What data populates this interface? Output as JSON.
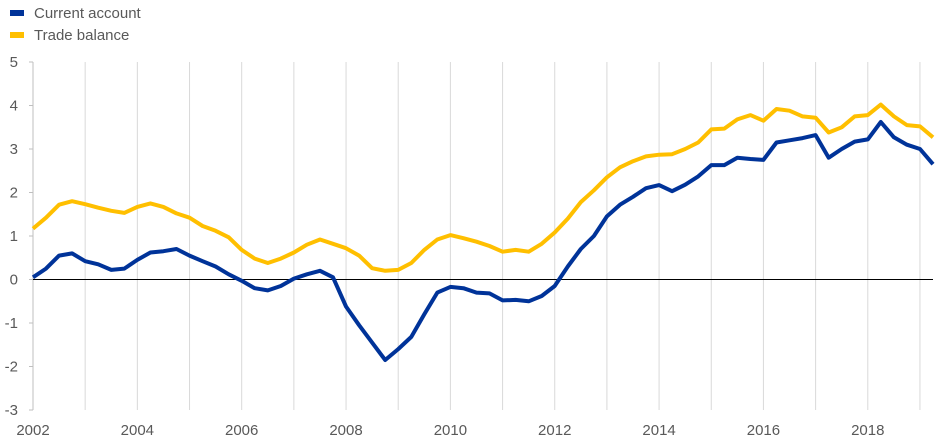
{
  "chart_data": {
    "type": "line",
    "title": "",
    "xlabel": "",
    "ylabel": "",
    "xlim": [
      2002,
      2019.25
    ],
    "ylim": [
      -3,
      5
    ],
    "x_ticks": [
      "2002",
      "2004",
      "2006",
      "2008",
      "2010",
      "2012",
      "2014",
      "2016",
      "2018"
    ],
    "y_ticks": [
      "5",
      "4",
      "3",
      "2",
      "1",
      "0",
      "-1",
      "-2",
      "-3"
    ],
    "grid": "vertical at each year",
    "legend_position": "top-left",
    "x": [
      2002,
      2002.25,
      2002.5,
      2002.75,
      2003,
      2003.25,
      2003.5,
      2003.75,
      2004,
      2004.25,
      2004.5,
      2004.75,
      2005,
      2005.25,
      2005.5,
      2005.75,
      2006,
      2006.25,
      2006.5,
      2006.75,
      2007,
      2007.25,
      2007.5,
      2007.75,
      2008,
      2008.25,
      2008.5,
      2008.75,
      2009,
      2009.25,
      2009.5,
      2009.75,
      2010,
      2010.25,
      2010.5,
      2010.75,
      2011,
      2011.25,
      2011.5,
      2011.75,
      2012,
      2012.25,
      2012.5,
      2012.75,
      2013,
      2013.25,
      2013.5,
      2013.75,
      2014,
      2014.25,
      2014.5,
      2014.75,
      2015,
      2015.25,
      2015.5,
      2015.75,
      2016,
      2016.25,
      2016.5,
      2016.75,
      2017,
      2017.25,
      2017.5,
      2017.75,
      2018,
      2018.25,
      2018.5,
      2018.75,
      2019,
      2019.25
    ],
    "series": [
      {
        "name": "Current account",
        "color": "#003399",
        "values": [
          0.05,
          0.25,
          0.55,
          0.6,
          0.42,
          0.35,
          0.22,
          0.25,
          0.45,
          0.62,
          0.65,
          0.7,
          0.55,
          0.42,
          0.3,
          0.12,
          -0.03,
          -0.2,
          -0.25,
          -0.15,
          0.02,
          0.12,
          0.2,
          0.05,
          -0.62,
          -1.05,
          -1.45,
          -1.85,
          -1.6,
          -1.32,
          -0.8,
          -0.3,
          -0.17,
          -0.2,
          -0.3,
          -0.32,
          -0.48,
          -0.47,
          -0.5,
          -0.38,
          -0.15,
          0.3,
          0.7,
          1.0,
          1.45,
          1.72,
          1.9,
          2.1,
          2.17,
          2.03,
          2.18,
          2.37,
          2.63,
          2.63,
          2.8,
          2.77,
          2.75,
          3.15,
          3.2,
          3.25,
          3.32,
          2.8,
          3.0,
          3.17,
          3.22,
          3.62,
          3.27,
          3.1,
          3.0,
          2.65
        ]
      },
      {
        "name": "Trade balance",
        "color": "#ffbf00",
        "values": [
          1.17,
          1.42,
          1.72,
          1.8,
          1.73,
          1.65,
          1.58,
          1.53,
          1.67,
          1.75,
          1.67,
          1.52,
          1.42,
          1.23,
          1.12,
          0.97,
          0.68,
          0.48,
          0.38,
          0.48,
          0.62,
          0.8,
          0.92,
          0.82,
          0.72,
          0.55,
          0.26,
          0.2,
          0.22,
          0.38,
          0.68,
          0.92,
          1.02,
          0.95,
          0.87,
          0.77,
          0.64,
          0.68,
          0.64,
          0.82,
          1.08,
          1.4,
          1.78,
          2.05,
          2.35,
          2.58,
          2.72,
          2.83,
          2.87,
          2.88,
          3.0,
          3.15,
          3.45,
          3.47,
          3.68,
          3.78,
          3.65,
          3.92,
          3.88,
          3.75,
          3.72,
          3.38,
          3.5,
          3.75,
          3.78,
          4.02,
          3.75,
          3.55,
          3.52,
          3.27
        ]
      }
    ]
  }
}
